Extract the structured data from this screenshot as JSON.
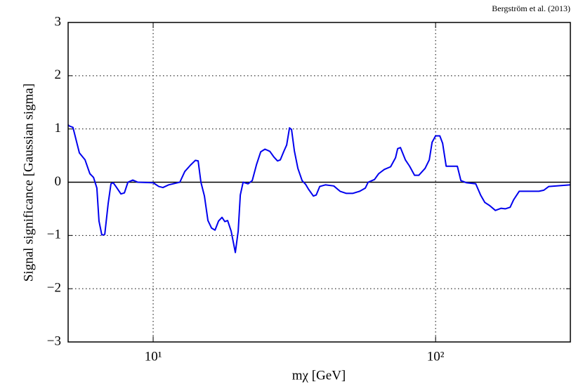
{
  "chart_data": {
    "type": "line",
    "annotation": "Bergström et al. (2013)",
    "xlabel": "mχ [GeV]",
    "ylabel": "Signal significance [Gaussian sigma]",
    "xscale": "log",
    "xlim": [
      5,
      300
    ],
    "xticks": [
      {
        "value": 10,
        "label": "10¹"
      },
      {
        "value": 100,
        "label": "10²"
      }
    ],
    "ylim": [
      -3,
      3
    ],
    "yticks": [
      {
        "value": -3,
        "label": "−3"
      },
      {
        "value": -2,
        "label": "−2"
      },
      {
        "value": -1,
        "label": "−1"
      },
      0,
      1,
      2,
      3
    ],
    "grid": true,
    "hlines": [
      0
    ],
    "x": [
      5.0,
      5.03,
      5.2,
      5.48,
      5.74,
      5.97,
      6.15,
      6.32,
      6.43,
      6.58,
      6.74,
      6.93,
      7.09,
      7.22,
      7.38,
      7.69,
      7.91,
      8.14,
      8.47,
      8.82,
      10,
      10.47,
      10.83,
      11.34,
      12.43,
      12.94,
      13.55,
      14.1,
      14.43,
      14.76,
      15.19,
      15.63,
      16.09,
      16.56,
      17.04,
      17.53,
      17.94,
      18.35,
      18.89,
      19.54,
      20.0,
      20.35,
      20.82,
      21.67,
      22.43,
      23.22,
      24.03,
      24.87,
      25.89,
      26.79,
      27.56,
      28.2,
      29.02,
      29.7,
      30.39,
      30.9,
      31.62,
      32.54,
      33.68,
      34.66,
      35.47,
      36.92,
      37.78,
      38.88,
      40.71,
      43.6,
      45.89,
      48.31,
      50.87,
      53.87,
      56.39,
      57.7,
      60.75,
      62.87,
      65.82,
      69.3,
      72.14,
      73.4,
      75.09,
      78.16,
      80.91,
      84.23,
      87.17,
      91.78,
      94.98,
      97.19,
      100,
      103.5,
      105.9,
      109.0,
      114.1,
      119.4,
      122.9,
      128.7,
      138.7,
      144.3,
      149.4,
      155.5,
      162.8,
      170.4,
      176.4,
      183.6,
      188.9,
      197.7,
      210.6,
      232.2,
      241.7,
      251.6,
      300
    ],
    "series": [
      {
        "color": "#0000ee",
        "values": [
          1.08,
          1.06,
          1.03,
          0.55,
          0.42,
          0.16,
          0.09,
          -0.11,
          -0.73,
          -0.99,
          -0.98,
          -0.4,
          -0.03,
          -0.01,
          -0.08,
          -0.22,
          -0.2,
          0,
          0.04,
          0,
          -0.01,
          -0.08,
          -0.1,
          -0.05,
          0,
          0.2,
          0.32,
          0.41,
          0.4,
          0,
          -0.26,
          -0.72,
          -0.86,
          -0.9,
          -0.73,
          -0.66,
          -0.74,
          -0.72,
          -0.92,
          -1.32,
          -0.92,
          -0.24,
          0,
          -0.03,
          0.03,
          0.33,
          0.57,
          0.62,
          0.58,
          0.47,
          0.4,
          0.42,
          0.58,
          0.7,
          1.02,
          0.99,
          0.59,
          0.26,
          0.03,
          -0.04,
          -0.13,
          -0.26,
          -0.24,
          -0.08,
          -0.05,
          -0.07,
          -0.17,
          -0.21,
          -0.21,
          -0.17,
          -0.11,
          0,
          0.05,
          0.16,
          0.24,
          0.29,
          0.46,
          0.63,
          0.65,
          0.42,
          0.3,
          0.13,
          0.13,
          0.26,
          0.42,
          0.75,
          0.87,
          0.87,
          0.73,
          0.3,
          0.3,
          0.3,
          0.03,
          -0.01,
          -0.03,
          -0.24,
          -0.38,
          -0.44,
          -0.53,
          -0.49,
          -0.5,
          -0.47,
          -0.33,
          -0.17,
          -0.17,
          -0.17,
          -0.15,
          -0.08,
          -0.05
        ]
      }
    ]
  }
}
